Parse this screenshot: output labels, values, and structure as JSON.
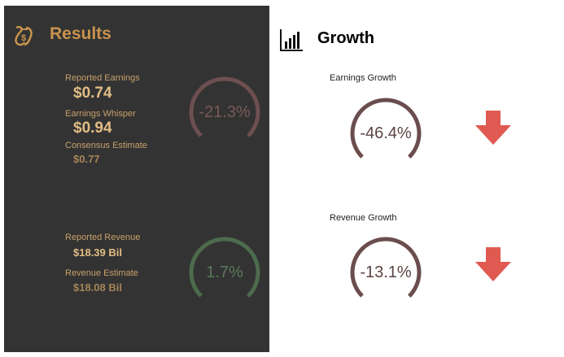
{
  "results": {
    "title": "Results",
    "icon": "money-bag-icon",
    "reported_earnings_label": "Reported Earnings",
    "reported_earnings_value": "$0.74",
    "earnings_whisper_label": "Earnings Whisper",
    "earnings_whisper_value": "$0.94",
    "consensus_estimate_label": "Consensus Estimate",
    "consensus_estimate_value": "$0.77",
    "earnings_surprise": {
      "text": "-21.3%",
      "fill": 0.75,
      "color": "#6e4f4f"
    },
    "reported_revenue_label": "Reported Revenue",
    "reported_revenue_value": "$18.39 Bil",
    "revenue_estimate_label": "Revenue Estimate",
    "revenue_estimate_value": "$18.08 Bil",
    "revenue_surprise": {
      "text": "1.7%",
      "fill": 0.75,
      "color": "#4d6b4d"
    }
  },
  "growth": {
    "title": "Growth",
    "icon": "bar-chart-icon",
    "earnings_label": "Earnings Growth",
    "earnings_value": {
      "text": "-46.4%",
      "fill": 0.75,
      "color": "#6b4d4d",
      "direction": "down"
    },
    "revenue_label": "Revenue Growth",
    "revenue_value": {
      "text": "-13.1%",
      "fill": 0.75,
      "color": "#6b4d4d",
      "direction": "down"
    },
    "arrow_color": "#e05a52"
  }
}
